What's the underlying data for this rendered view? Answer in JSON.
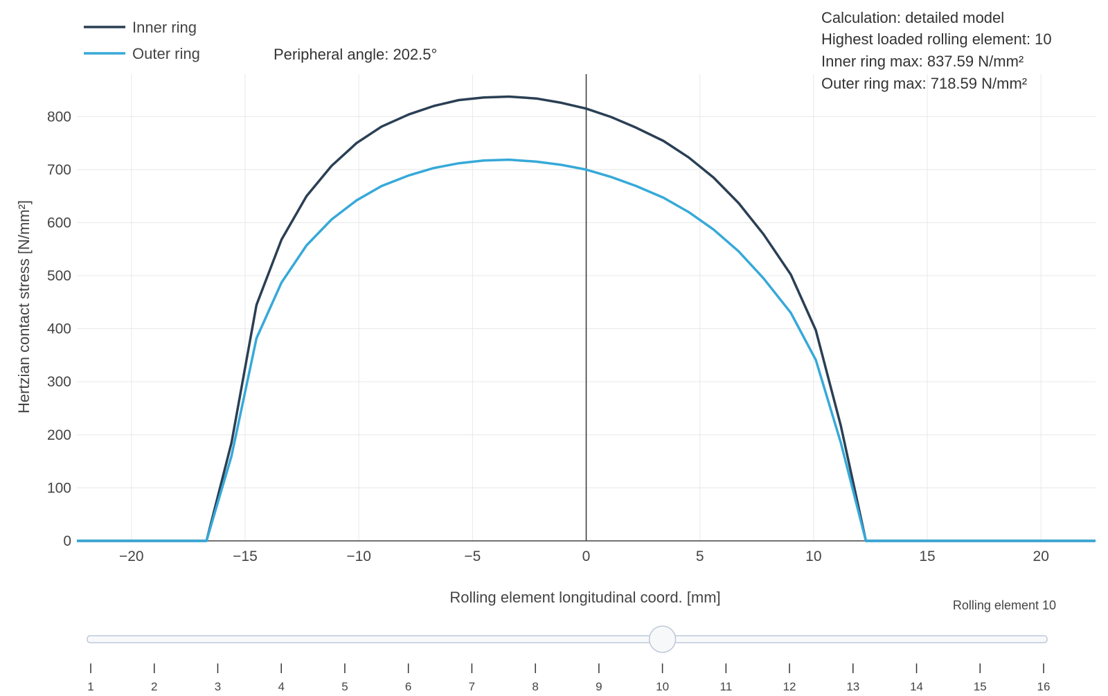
{
  "chart_data": {
    "type": "line",
    "title": "",
    "xlabel": "Rolling element longitudinal coord. [mm]",
    "ylabel": "Hertzian contact stress [N/mm²]",
    "xlim": [
      -22.4,
      22.4
    ],
    "ylim": [
      0,
      880
    ],
    "x_ticks": [
      -20,
      -15,
      -10,
      -5,
      0,
      5,
      10,
      15,
      20
    ],
    "x_tick_labels": [
      "−20",
      "−15",
      "−10",
      "−5",
      "0",
      "5",
      "10",
      "15",
      "20"
    ],
    "y_ticks": [
      0,
      100,
      200,
      300,
      400,
      500,
      600,
      700,
      800
    ],
    "y_tick_labels": [
      "0",
      "100",
      "200",
      "300",
      "400",
      "500",
      "600",
      "700",
      "800"
    ],
    "grid": true,
    "zero_line_x": 0,
    "legend_position": "top-left",
    "series": [
      {
        "name": "Inner ring",
        "color": "#2a3f54",
        "x": [
          -22.4,
          -16.7,
          -15.6,
          -14.5,
          -13.4,
          -12.3,
          -11.2,
          -10.1,
          -9.0,
          -7.8,
          -6.7,
          -5.6,
          -4.5,
          -3.4,
          -2.2,
          -1.1,
          0.0,
          1.1,
          2.2,
          3.4,
          4.5,
          5.6,
          6.7,
          7.8,
          9.0,
          10.1,
          11.2,
          12.3,
          22.4
        ],
        "y": [
          0,
          0,
          185,
          445,
          568,
          650,
          707,
          750,
          781,
          804,
          820,
          831,
          836,
          837.59,
          834,
          826,
          815,
          799,
          779,
          754,
          723,
          685,
          637,
          578,
          502,
          397,
          217,
          0,
          0
        ]
      },
      {
        "name": "Outer ring",
        "color": "#36a9d8",
        "x": [
          -22.4,
          -16.7,
          -15.6,
          -14.5,
          -13.4,
          -12.3,
          -11.2,
          -10.1,
          -9.0,
          -7.8,
          -6.7,
          -5.6,
          -4.5,
          -3.4,
          -2.2,
          -1.1,
          0.0,
          1.1,
          2.2,
          3.4,
          4.5,
          5.6,
          6.7,
          7.8,
          9.0,
          10.1,
          11.2,
          12.3,
          22.4
        ],
        "y": [
          0,
          0,
          160,
          382,
          487,
          557,
          606,
          642,
          669,
          689,
          703,
          712,
          717,
          718.59,
          715,
          709,
          700,
          686,
          669,
          647,
          620,
          587,
          546,
          495,
          430,
          341,
          185,
          0,
          0
        ]
      }
    ],
    "annotations": {
      "peripheral_angle": "Peripheral angle: 202.5°",
      "lines": [
        "Calculation: detailed model",
        "Highest loaded rolling element: 10",
        "Inner ring max: 837.59 N/mm²",
        "Outer ring max: 718.59 N/mm²"
      ]
    }
  },
  "slider": {
    "current_label": "Rolling element 10",
    "value": 10,
    "steps": [
      "1",
      "2",
      "3",
      "4",
      "5",
      "6",
      "7",
      "8",
      "9",
      "10",
      "11",
      "12",
      "13",
      "14",
      "15",
      "16"
    ]
  },
  "colors": {
    "inner": "#2a3f54",
    "outer": "#36a9d8",
    "grid": "#e8e8e8",
    "slider_rail": "#bec8d9",
    "slider_handle_fill": "#f6f8fa"
  }
}
